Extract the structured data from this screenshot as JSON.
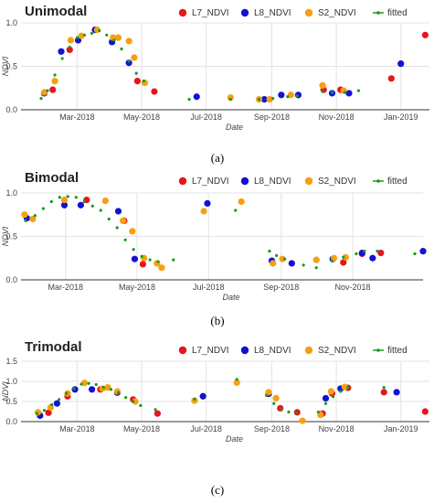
{
  "legend": {
    "l7": "L7_NDVI",
    "l8": "L8_NDVI",
    "s2": "S2_NDVI",
    "fitted": "fitted"
  },
  "colors": {
    "l7": "#e8141c",
    "l8": "#1212d6",
    "s2": "#f5a012",
    "fitted": "#1a9a1a"
  },
  "chart_data": [
    {
      "type": "scatter",
      "title": "Unimodal",
      "caption": "(a)",
      "xlabel": "Date",
      "ylabel": "NDVI",
      "xlim": [
        "2018-01-07",
        "2019-01-28"
      ],
      "ylim": [
        0,
        1.0
      ],
      "yticks": [
        "0.0",
        "0.5",
        "1.0"
      ],
      "xticks": [
        {
          "label": "Mar-2018",
          "date": "2018-03-01"
        },
        {
          "label": "May-2018",
          "date": "2018-05-01"
        },
        {
          "label": "Jul-2018",
          "date": "2018-07-01"
        },
        {
          "label": "Sep-2018",
          "date": "2018-09-01"
        },
        {
          "label": "Nov-2018",
          "date": "2018-11-01"
        },
        {
          "label": "Jan-2019",
          "date": "2019-01-01"
        }
      ],
      "series": [
        {
          "name": "L7_NDVI",
          "key": "l7",
          "points": [
            [
              "2018-02-06",
              0.23
            ],
            [
              "2018-02-22",
              0.69
            ],
            [
              "2018-04-27",
              0.33
            ],
            [
              "2018-05-13",
              0.21
            ],
            [
              "2018-10-20",
              0.23
            ],
            [
              "2018-11-05",
              0.23
            ],
            [
              "2018-12-23",
              0.36
            ],
            [
              "2019-01-24",
              0.86
            ]
          ]
        },
        {
          "name": "L8_NDVI",
          "key": "l8",
          "points": [
            [
              "2018-01-29",
              0.19
            ],
            [
              "2018-02-14",
              0.67
            ],
            [
              "2018-03-02",
              0.8
            ],
            [
              "2018-03-18",
              0.92
            ],
            [
              "2018-04-03",
              0.78
            ],
            [
              "2018-04-19",
              0.54
            ],
            [
              "2018-06-22",
              0.15
            ],
            [
              "2018-08-25",
              0.12
            ],
            [
              "2018-09-10",
              0.17
            ],
            [
              "2018-09-26",
              0.17
            ],
            [
              "2018-10-28",
              0.19
            ],
            [
              "2018-11-13",
              0.19
            ],
            [
              "2019-01-01",
              0.53
            ]
          ]
        },
        {
          "name": "S2_NDVI",
          "key": "s2",
          "points": [
            [
              "2018-01-29",
              0.2
            ],
            [
              "2018-02-08",
              0.33
            ],
            [
              "2018-02-23",
              0.8
            ],
            [
              "2018-03-05",
              0.85
            ],
            [
              "2018-03-20",
              0.92
            ],
            [
              "2018-04-04",
              0.83
            ],
            [
              "2018-04-09",
              0.83
            ],
            [
              "2018-04-19",
              0.79
            ],
            [
              "2018-04-24",
              0.6
            ],
            [
              "2018-05-04",
              0.31
            ],
            [
              "2018-07-24",
              0.14
            ],
            [
              "2018-08-20",
              0.12
            ],
            [
              "2018-08-30",
              0.12
            ],
            [
              "2018-09-19",
              0.17
            ],
            [
              "2018-10-19",
              0.28
            ],
            [
              "2018-11-08",
              0.22
            ]
          ]
        },
        {
          "name": "fitted",
          "key": "fitted",
          "points": [
            [
              "2018-01-26",
              0.13
            ],
            [
              "2018-02-01",
              0.22
            ],
            [
              "2018-02-08",
              0.4
            ],
            [
              "2018-02-15",
              0.59
            ],
            [
              "2018-02-22",
              0.72
            ],
            [
              "2018-03-01",
              0.83
            ],
            [
              "2018-03-08",
              0.86
            ],
            [
              "2018-03-15",
              0.88
            ],
            [
              "2018-03-22",
              0.91
            ],
            [
              "2018-03-29",
              0.86
            ],
            [
              "2018-04-05",
              0.8
            ],
            [
              "2018-04-12",
              0.7
            ],
            [
              "2018-04-19",
              0.56
            ],
            [
              "2018-04-26",
              0.42
            ],
            [
              "2018-05-03",
              0.33
            ],
            [
              "2018-06-15",
              0.12
            ],
            [
              "2018-07-24",
              0.12
            ],
            [
              "2018-08-20",
              0.12
            ],
            [
              "2018-09-02",
              0.13
            ],
            [
              "2018-09-16",
              0.15
            ],
            [
              "2018-09-25",
              0.16
            ],
            [
              "2018-10-19",
              0.21
            ],
            [
              "2018-10-28",
              0.2
            ],
            [
              "2018-11-09",
              0.2
            ],
            [
              "2018-11-22",
              0.22
            ]
          ]
        }
      ]
    },
    {
      "type": "scatter",
      "title": "Bimodal",
      "caption": "(b)",
      "xlabel": "Date",
      "ylabel": "NDVI",
      "xlim": [
        "2018-01-22",
        "2018-12-31"
      ],
      "ylim": [
        0,
        1.0
      ],
      "yticks": [
        "0.0",
        "0.5",
        "1.0"
      ],
      "xticks": [
        {
          "label": "Mar-2018",
          "date": "2018-03-01"
        },
        {
          "label": "May-2018",
          "date": "2018-05-01"
        },
        {
          "label": "Jul-2018",
          "date": "2018-07-01"
        },
        {
          "label": "Sep-2018",
          "date": "2018-09-01"
        },
        {
          "label": "Nov-2018",
          "date": "2018-11-01"
        }
      ],
      "series": [
        {
          "name": "L7_NDVI",
          "key": "l7",
          "points": [
            [
              "2018-03-19",
              0.92
            ],
            [
              "2018-04-20",
              0.68
            ],
            [
              "2018-05-06",
              0.18
            ],
            [
              "2018-10-24",
              0.2
            ],
            [
              "2018-11-09",
              0.3
            ],
            [
              "2018-11-25",
              0.31
            ]
          ]
        },
        {
          "name": "L8_NDVI",
          "key": "l8",
          "points": [
            [
              "2018-01-27",
              0.71
            ],
            [
              "2018-02-28",
              0.86
            ],
            [
              "2018-03-14",
              0.86
            ],
            [
              "2018-04-15",
              0.79
            ],
            [
              "2018-04-29",
              0.24
            ],
            [
              "2018-06-30",
              0.88
            ],
            [
              "2018-08-24",
              0.22
            ],
            [
              "2018-09-10",
              0.19
            ],
            [
              "2018-10-15",
              0.24
            ],
            [
              "2018-11-09",
              0.31
            ],
            [
              "2018-11-18",
              0.25
            ],
            [
              "2018-12-31",
              0.33
            ]
          ]
        },
        {
          "name": "S2_NDVI",
          "key": "s2",
          "points": [
            [
              "2018-01-25",
              0.75
            ],
            [
              "2018-02-01",
              0.7
            ],
            [
              "2018-02-28",
              0.92
            ],
            [
              "2018-04-04",
              0.91
            ],
            [
              "2018-04-19",
              0.68
            ],
            [
              "2018-04-27",
              0.56
            ],
            [
              "2018-05-07",
              0.25
            ],
            [
              "2018-05-18",
              0.19
            ],
            [
              "2018-05-22",
              0.14
            ],
            [
              "2018-06-27",
              0.79
            ],
            [
              "2018-07-29",
              0.9
            ],
            [
              "2018-08-25",
              0.19
            ],
            [
              "2018-09-02",
              0.24
            ],
            [
              "2018-10-01",
              0.23
            ],
            [
              "2018-10-16",
              0.25
            ],
            [
              "2018-10-26",
              0.26
            ]
          ]
        },
        {
          "name": "fitted",
          "key": "fitted",
          "points": [
            [
              "2018-01-26",
              0.68
            ],
            [
              "2018-02-03",
              0.74
            ],
            [
              "2018-02-10",
              0.82
            ],
            [
              "2018-02-17",
              0.9
            ],
            [
              "2018-02-24",
              0.95
            ],
            [
              "2018-03-03",
              0.96
            ],
            [
              "2018-03-10",
              0.95
            ],
            [
              "2018-03-17",
              0.9
            ],
            [
              "2018-03-24",
              0.85
            ],
            [
              "2018-03-31",
              0.8
            ],
            [
              "2018-04-07",
              0.7
            ],
            [
              "2018-04-14",
              0.6
            ],
            [
              "2018-04-21",
              0.46
            ],
            [
              "2018-04-28",
              0.35
            ],
            [
              "2018-05-05",
              0.27
            ],
            [
              "2018-05-12",
              0.23
            ],
            [
              "2018-05-19",
              0.21
            ],
            [
              "2018-06-01",
              0.23
            ],
            [
              "2018-07-24",
              0.8
            ],
            [
              "2018-08-22",
              0.33
            ],
            [
              "2018-08-28",
              0.28
            ],
            [
              "2018-09-04",
              0.24
            ],
            [
              "2018-09-20",
              0.17
            ],
            [
              "2018-10-01",
              0.14
            ],
            [
              "2018-10-14",
              0.22
            ],
            [
              "2018-10-24",
              0.26
            ],
            [
              "2018-11-04",
              0.3
            ],
            [
              "2018-11-11",
              0.33
            ],
            [
              "2018-11-22",
              0.33
            ],
            [
              "2018-12-24",
              0.3
            ]
          ]
        }
      ]
    },
    {
      "type": "scatter",
      "title": "Trimodal",
      "caption": "(c)",
      "xlabel": "Date",
      "ylabel": "NDVI",
      "xlim": [
        "2018-01-07",
        "2019-01-28"
      ],
      "ylim": [
        0,
        1.5
      ],
      "yticks": [
        "0.0",
        "0.5",
        "1.0",
        "1.5"
      ],
      "xticks": [
        {
          "label": "Mar-2018",
          "date": "2018-03-01"
        },
        {
          "label": "May-2018",
          "date": "2018-05-01"
        },
        {
          "label": "Jul-2018",
          "date": "2018-07-01"
        },
        {
          "label": "Sep-2018",
          "date": "2018-09-01"
        },
        {
          "label": "Nov-2018",
          "date": "2018-11-01"
        },
        {
          "label": "Jan-2019",
          "date": "2019-01-01"
        }
      ],
      "series": [
        {
          "name": "L7_NDVI",
          "key": "l7",
          "points": [
            [
              "2018-02-02",
              0.22
            ],
            [
              "2018-02-20",
              0.63
            ],
            [
              "2018-03-23",
              0.8
            ],
            [
              "2018-04-23",
              0.55
            ],
            [
              "2018-05-16",
              0.2
            ],
            [
              "2018-09-09",
              0.33
            ],
            [
              "2018-09-25",
              0.23
            ],
            [
              "2018-10-19",
              0.2
            ],
            [
              "2018-10-28",
              0.7
            ],
            [
              "2018-11-12",
              0.84
            ],
            [
              "2018-12-16",
              0.73
            ],
            [
              "2019-01-24",
              0.25
            ]
          ]
        },
        {
          "name": "L8_NDVI",
          "key": "l8",
          "points": [
            [
              "2018-01-25",
              0.15
            ],
            [
              "2018-02-10",
              0.45
            ],
            [
              "2018-02-27",
              0.8
            ],
            [
              "2018-03-15",
              0.8
            ],
            [
              "2018-04-08",
              0.72
            ],
            [
              "2018-06-28",
              0.63
            ],
            [
              "2018-08-29",
              0.69
            ],
            [
              "2018-10-22",
              0.58
            ],
            [
              "2018-11-05",
              0.82
            ],
            [
              "2018-12-28",
              0.73
            ]
          ]
        },
        {
          "name": "S2_NDVI",
          "key": "s2",
          "points": [
            [
              "2018-01-23",
              0.23
            ],
            [
              "2018-02-04",
              0.35
            ],
            [
              "2018-02-20",
              0.7
            ],
            [
              "2018-03-08",
              0.96
            ],
            [
              "2018-03-25",
              0.82
            ],
            [
              "2018-03-30",
              0.85
            ],
            [
              "2018-04-08",
              0.75
            ],
            [
              "2018-04-25",
              0.5
            ],
            [
              "2018-06-20",
              0.52
            ],
            [
              "2018-07-30",
              0.97
            ],
            [
              "2018-08-29",
              0.73
            ],
            [
              "2018-09-05",
              0.58
            ],
            [
              "2018-09-30",
              0.02
            ],
            [
              "2018-10-17",
              0.17
            ],
            [
              "2018-10-27",
              0.75
            ],
            [
              "2018-11-09",
              0.86
            ]
          ]
        },
        {
          "name": "fitted",
          "key": "fitted",
          "points": [
            [
              "2018-01-22",
              0.2
            ],
            [
              "2018-01-29",
              0.28
            ],
            [
              "2018-02-05",
              0.42
            ],
            [
              "2018-02-12",
              0.55
            ],
            [
              "2018-02-19",
              0.7
            ],
            [
              "2018-02-26",
              0.82
            ],
            [
              "2018-03-05",
              0.93
            ],
            [
              "2018-03-12",
              0.95
            ],
            [
              "2018-03-19",
              0.92
            ],
            [
              "2018-03-26",
              0.85
            ],
            [
              "2018-04-02",
              0.8
            ],
            [
              "2018-04-09",
              0.72
            ],
            [
              "2018-04-16",
              0.6
            ],
            [
              "2018-04-23",
              0.5
            ],
            [
              "2018-04-30",
              0.4
            ],
            [
              "2018-05-14",
              0.3
            ],
            [
              "2018-06-20",
              0.56
            ],
            [
              "2018-07-30",
              1.05
            ],
            [
              "2018-08-27",
              0.65
            ],
            [
              "2018-09-03",
              0.45
            ],
            [
              "2018-09-10",
              0.3
            ],
            [
              "2018-09-17",
              0.24
            ],
            [
              "2018-09-24",
              0.22
            ],
            [
              "2018-10-15",
              0.24
            ],
            [
              "2018-10-22",
              0.45
            ],
            [
              "2018-10-29",
              0.62
            ],
            [
              "2018-11-05",
              0.75
            ],
            [
              "2018-11-12",
              0.85
            ],
            [
              "2018-12-16",
              0.85
            ]
          ]
        }
      ]
    }
  ]
}
